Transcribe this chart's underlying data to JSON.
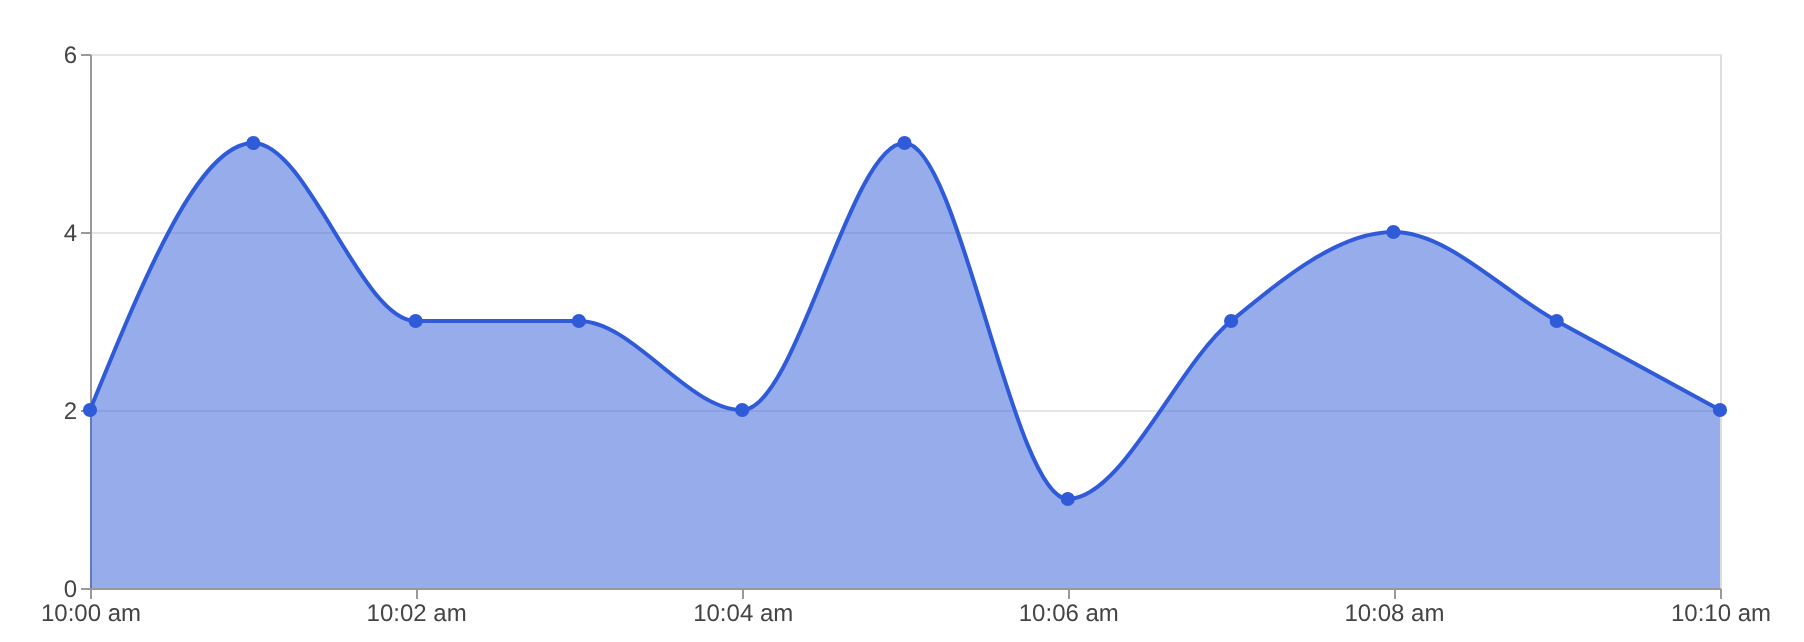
{
  "chart_data": {
    "type": "area",
    "x": [
      10.0,
      10.0167,
      10.0333,
      10.05,
      10.0667,
      10.0833,
      10.1,
      10.1167,
      10.1333,
      10.15,
      10.1667
    ],
    "series": [
      {
        "color": "#2f5bd8",
        "values": [
          2,
          5,
          3,
          3,
          2,
          5,
          1,
          3,
          4,
          3,
          2
        ]
      }
    ],
    "xlim": [
      10.0,
      10.1667
    ],
    "xticks": [
      {
        "value": 10.0,
        "label": "10:00 am"
      },
      {
        "value": 10.0333,
        "label": "10:02 am"
      },
      {
        "value": 10.0667,
        "label": "10:04 am"
      },
      {
        "value": 10.1,
        "label": "10:06 am"
      },
      {
        "value": 10.1333,
        "label": "10:08 am"
      },
      {
        "value": 10.1667,
        "label": "10:10 am"
      }
    ],
    "ylim": [
      0,
      6
    ],
    "yticks": [
      0,
      2,
      4,
      6
    ],
    "grid": "y",
    "marker": "circle",
    "line_style": "solid"
  }
}
